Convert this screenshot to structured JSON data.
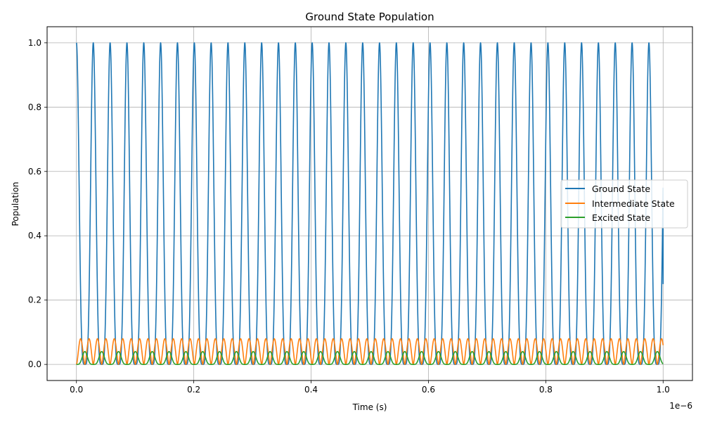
{
  "chart_data": {
    "type": "line",
    "title": "Ground State Population",
    "xlabel": "Time (s)",
    "ylabel": "Population",
    "x_offset_text": "1e−6",
    "xlim": [
      -0.05,
      1.05
    ],
    "ylim": [
      -0.05,
      1.05
    ],
    "x_ticks": [
      0.0,
      0.2,
      0.4,
      0.6,
      0.8,
      1.0
    ],
    "x_tick_labels": [
      "0.0",
      "0.2",
      "0.4",
      "0.6",
      "0.8",
      "1.0"
    ],
    "y_ticks": [
      0.0,
      0.2,
      0.4,
      0.6,
      0.8,
      1.0
    ],
    "y_tick_labels": [
      "0.0",
      "0.2",
      "0.4",
      "0.6",
      "0.8",
      "1.0"
    ],
    "grid": true,
    "legend_position": "center-right",
    "x_range": [
      0.0,
      1.0
    ],
    "oscillation_period": 0.0287,
    "series": [
      {
        "name": "Ground State",
        "color": "#1f77b4",
        "min": 0.0,
        "max": 1.0,
        "end_value": 0.25
      },
      {
        "name": "Intermediate State",
        "color": "#ff7f0e",
        "min": 0.0,
        "max": 0.08
      },
      {
        "name": "Excited State",
        "color": "#2ca02c",
        "min": 0.0,
        "max": 0.04
      }
    ]
  }
}
